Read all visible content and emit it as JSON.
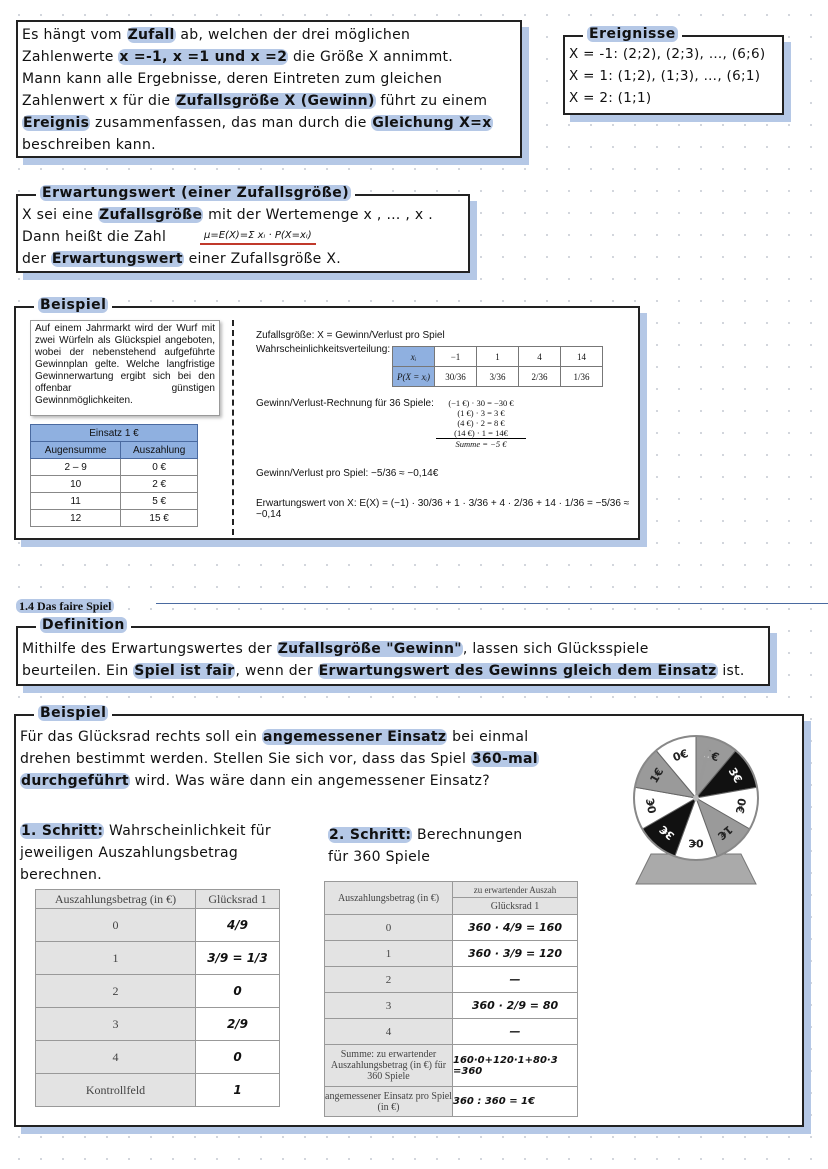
{
  "intro": {
    "lines": [
      [
        [
          "Es hängt vom ",
          0
        ],
        [
          "Zufall",
          1
        ],
        [
          " ab, welchen der drei möglichen",
          0
        ]
      ],
      [
        [
          "Zahlenwerte ",
          0
        ],
        [
          "x =-1, x =1 und x =2",
          1
        ],
        [
          " die Größe X annimmt.",
          0
        ]
      ],
      [
        [
          "Mann kann alle Ergebnisse, deren Eintreten zum gleichen",
          0
        ]
      ],
      [
        [
          "Zahlenwert x  für die ",
          0
        ],
        [
          "Zufallsgröße X (Gewinn)",
          1
        ],
        [
          " führt zu einem",
          0
        ]
      ],
      [
        [
          "Ereignis",
          1
        ],
        [
          " zusammenfassen, das man durch die ",
          0
        ],
        [
          "Gleichung X=x",
          1
        ]
      ],
      [
        [
          "beschreiben kann.",
          0
        ]
      ]
    ]
  },
  "events": {
    "title": "Ereignisse",
    "lines": [
      [
        [
          "X = -1: (2;2), (2;3), …, (6;6)",
          0
        ]
      ],
      [
        [
          "X =  1: (1;2), (1;3), …, (6;1)",
          0
        ]
      ],
      [
        [
          "X =  2: (1;1)",
          0
        ]
      ]
    ]
  },
  "expect": {
    "title": "Erwartungswert (einer Zufallsgröße)",
    "lines": [
      [
        [
          "X sei eine ",
          0
        ],
        [
          "Zufallsgröße",
          1
        ],
        [
          " mit der Wertemenge x , … , x  .",
          0
        ]
      ],
      [
        [
          "Dann heißt die Zahl ",
          0
        ]
      ],
      [
        [
          "der ",
          0
        ],
        [
          "Erwartungswert",
          1
        ],
        [
          " einer Zufallsgröße X.",
          0
        ]
      ]
    ],
    "formula": "μ=E(X)=Σ xᵢ · P(X=xᵢ)"
  },
  "example1": {
    "title": "Beispiel",
    "text": "Auf einem Jahrmarkt wird der Wurf mit zwei Würfeln als Glückspiel angeboten, wobei der nebenstehend aufgeführte Gewinnplan gelte. Welche langfristige Gewinnerwartung ergibt sich bei den offenbar günstigen Gewinnmöglichkeiten.",
    "table": {
      "caption": "Einsatz 1 €",
      "headers": [
        "Augensumme",
        "Auszahlung"
      ],
      "rows": [
        [
          "2 – 9",
          "0 €"
        ],
        [
          "10",
          "2 €"
        ],
        [
          "11",
          "5 €"
        ],
        [
          "12",
          "15 €"
        ]
      ]
    },
    "random_var": "Zufallsgröße: X = Gewinn/Verlust pro Spiel",
    "dist_label": "Wahrscheinlichkeitsverteilung:",
    "dist": {
      "row1": [
        "xᵢ",
        "−1",
        "1",
        "4",
        "14"
      ],
      "row2": [
        "P(X = xᵢ)",
        "30/36",
        "3/36",
        "2/36",
        "1/36"
      ]
    },
    "calc_label": "Gewinn/Verlust-Rechnung für 36 Spiele:",
    "calc": [
      "(−1 €) · 30 = −30 €",
      "(1 €) · 3 = 3 €",
      "(4 €) · 2 = 8 €",
      "(14 €) · 1 = 14€",
      "Summe = −5 €"
    ],
    "per_game": "Gewinn/Verlust pro Spiel: −5/36 ≈ −0,14€",
    "expected": "Erwartungswert von X: E(X) = (−1) · 30/36 + 1 · 3/36 + 4 · 2/36 + 14 · 1/36 = −5/36 ≈ −0,14"
  },
  "section": {
    "heading": "1.4 Das faire Spiel"
  },
  "definition": {
    "title": "Definition",
    "lines": [
      [
        [
          "Mithilfe des Erwartungswertes der ",
          0
        ],
        [
          "Zufallsgröße \"Gewinn\"",
          1
        ],
        [
          ", lassen sich Glücksspiele",
          0
        ]
      ],
      [
        [
          "beurteilen. Ein ",
          0
        ],
        [
          "Spiel ist fair",
          1
        ],
        [
          ", wenn der ",
          0
        ],
        [
          "Erwartungswert des Gewinns gleich dem Einsatz",
          1
        ],
        [
          " ist.",
          0
        ]
      ]
    ]
  },
  "example2": {
    "title": "Beispiel",
    "lines": [
      [
        [
          "Für das Glücksrad rechts soll ein ",
          0
        ],
        [
          "angemessener Einsatz",
          1
        ],
        [
          " bei einmal",
          0
        ]
      ],
      [
        [
          "drehen bestimmt werden. Stellen Sie sich vor, dass das Spiel ",
          0
        ],
        [
          "360-mal",
          1
        ]
      ],
      [
        [
          "durchgeführt",
          1
        ],
        [
          " wird. Was wäre dann ein angemessener Einsatz?",
          0
        ]
      ]
    ],
    "step1": [
      [
        [
          "1. Schritt:",
          1
        ],
        [
          " Wahrscheinlichkeit für",
          0
        ]
      ],
      [
        [
          "jeweiligen Auszahlungsbetrag",
          0
        ]
      ],
      [
        [
          "berechnen.",
          0
        ]
      ]
    ],
    "step2": [
      [
        [
          "2. Schritt:",
          1
        ],
        [
          " Berechnungen",
          0
        ]
      ],
      [
        [
          "für 360 Spiele",
          0
        ]
      ]
    ],
    "wheel": {
      "sectors": [
        "1€",
        "3€",
        "0€",
        "1€",
        "0€",
        "3€",
        "0€",
        "1€",
        "0€"
      ],
      "colors": {
        "1€": "#9a9a9a",
        "3€": "#111111",
        "0€": "#ffffff"
      }
    },
    "table1": {
      "headers": [
        "Auszahlungsbetrag (in €)",
        "Glücksrad 1"
      ],
      "rows": [
        [
          "0",
          "4/9"
        ],
        [
          "1",
          "3/9 = 1/3"
        ],
        [
          "2",
          "0"
        ],
        [
          "3",
          "2/9"
        ],
        [
          "4",
          "0"
        ],
        [
          "Kontrollfeld",
          "1"
        ]
      ]
    },
    "table2": {
      "header1": "Auszahlungsbetrag (in €)",
      "header2": "zu erwartender Auszah",
      "header3": "Glücksrad 1",
      "rows": [
        [
          "0",
          "360 · 4/9 = 160"
        ],
        [
          "1",
          "360 · 3/9 = 120"
        ],
        [
          "2",
          "—"
        ],
        [
          "3",
          "360 · 2/9 = 80"
        ],
        [
          "4",
          "—"
        ],
        [
          "Summe: zu erwartender Auszahlungsbetrag (in €) für 360 Spiele",
          "160·0+120·1+80·3 =360"
        ],
        [
          "angemessener Einsatz pro Spiel (in €)",
          "360 : 360 = 1€"
        ]
      ]
    }
  },
  "colors": {
    "highlight": "#b5c8e6",
    "table_header": "#8fb0e0",
    "formula_underline": "#c0392b"
  }
}
